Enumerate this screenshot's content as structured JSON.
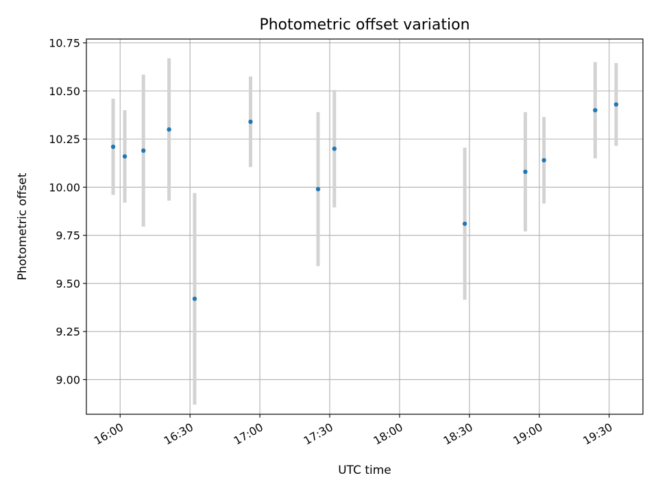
{
  "chart_data": {
    "type": "scatter",
    "title": "Photometric offset variation",
    "xlabel": "UTC time",
    "ylabel": "Photometric offset",
    "x_unit": "minutes since 00:00 UTC",
    "xlim": [
      945.5,
      1184.5
    ],
    "ylim": [
      8.82,
      10.77
    ],
    "x_ticks": [
      {
        "value": 960,
        "label": "16:00"
      },
      {
        "value": 990,
        "label": "16:30"
      },
      {
        "value": 1020,
        "label": "17:00"
      },
      {
        "value": 1050,
        "label": "17:30"
      },
      {
        "value": 1080,
        "label": "18:00"
      },
      {
        "value": 1110,
        "label": "18:30"
      },
      {
        "value": 1140,
        "label": "19:00"
      },
      {
        "value": 1170,
        "label": "19:30"
      }
    ],
    "y_ticks": [
      {
        "value": 9.0,
        "label": "9.00"
      },
      {
        "value": 9.25,
        "label": "9.25"
      },
      {
        "value": 9.5,
        "label": "9.50"
      },
      {
        "value": 9.75,
        "label": "9.75"
      },
      {
        "value": 10.0,
        "label": "10.00"
      },
      {
        "value": 10.25,
        "label": "10.25"
      },
      {
        "value": 10.5,
        "label": "10.50"
      },
      {
        "value": 10.75,
        "label": "10.75"
      }
    ],
    "grid": true,
    "colors": {
      "point": "#1f77b4",
      "errorbar": "#d3d3d3",
      "grid": "#b0b0b0"
    },
    "series": [
      {
        "points": [
          {
            "x": "15:57",
            "y": 10.21,
            "err": 0.25
          },
          {
            "x": "16:02",
            "y": 10.16,
            "err": 0.24
          },
          {
            "x": "16:10",
            "y": 10.19,
            "err": 0.395
          },
          {
            "x": "16:21",
            "y": 10.3,
            "err": 0.37
          },
          {
            "x": "16:32",
            "y": 9.42,
            "err": 0.55
          },
          {
            "x": "16:56",
            "y": 10.34,
            "err": 0.235
          },
          {
            "x": "17:25",
            "y": 9.99,
            "err": 0.4
          },
          {
            "x": "17:32",
            "y": 10.2,
            "err": 0.305
          },
          {
            "x": "18:28",
            "y": 9.81,
            "err": 0.395
          },
          {
            "x": "18:54",
            "y": 10.08,
            "err": 0.31
          },
          {
            "x": "19:02",
            "y": 10.14,
            "err": 0.225
          },
          {
            "x": "19:24",
            "y": 10.4,
            "err": 0.25
          },
          {
            "x": "19:33",
            "y": 10.43,
            "err": 0.215
          }
        ]
      }
    ]
  }
}
